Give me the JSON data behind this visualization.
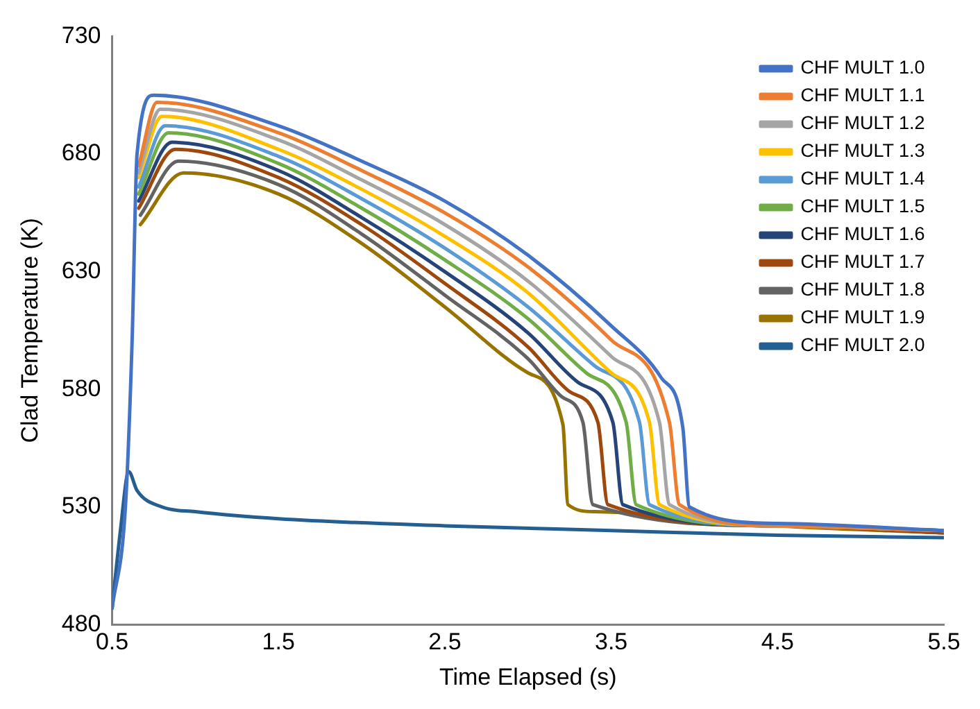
{
  "chart_data": {
    "type": "line",
    "xlabel": "Time Elapsed (s)",
    "ylabel": "Clad Temperature (K)",
    "xlim": [
      0.5,
      5.5
    ],
    "xticks": [
      0.5,
      1.5,
      2.5,
      3.5,
      4.5,
      5.5
    ],
    "ylim": [
      480,
      730
    ],
    "yticks": [
      480,
      530,
      580,
      630,
      680,
      730
    ],
    "grid": false,
    "legend": "top right",
    "marker": "none",
    "line_style": "solid",
    "series": [
      {
        "name": "CHF MULT 1.0",
        "color": "#4472c4",
        "x": [
          0.5,
          0.58,
          0.62,
          0.65,
          0.75,
          1.5,
          2.0,
          2.5,
          3.0,
          3.5,
          3.8,
          3.93,
          3.97,
          4.5,
          5.5
        ],
        "values": [
          487,
          530,
          600,
          680,
          705,
          692,
          677,
          660,
          637,
          607,
          585,
          564,
          530,
          523,
          520
        ]
      },
      {
        "name": "CHF MULT 1.1",
        "color": "#ed7d31",
        "x": [
          0.66,
          0.77,
          1.5,
          2.0,
          2.5,
          3.0,
          3.5,
          3.85,
          3.91,
          4.5,
          5.5
        ],
        "values": [
          675,
          702,
          689,
          673,
          655,
          632,
          601,
          566,
          531,
          522,
          520
        ]
      },
      {
        "name": "CHF MULT 1.2",
        "color": "#a5a5a5",
        "x": [
          0.66,
          0.79,
          1.5,
          2.0,
          2.5,
          3.0,
          3.5,
          3.79,
          3.85,
          4.5,
          5.5
        ],
        "values": [
          672,
          699,
          686,
          669,
          650,
          626,
          594,
          566,
          531,
          522,
          520
        ]
      },
      {
        "name": "CHF MULT 1.3",
        "color": "#ffc000",
        "x": [
          0.66,
          0.8,
          1.5,
          2.0,
          2.5,
          3.0,
          3.5,
          3.73,
          3.79,
          4.5,
          5.5
        ],
        "values": [
          670,
          696,
          682,
          665,
          645,
          621,
          587,
          566,
          531,
          522,
          520
        ]
      },
      {
        "name": "CHF MULT 1.4",
        "color": "#5b9bd5",
        "x": [
          0.66,
          0.82,
          1.5,
          2.0,
          2.5,
          3.0,
          3.4,
          3.67,
          3.73,
          4.5,
          5.5
        ],
        "values": [
          666,
          692,
          679,
          661,
          640,
          615,
          590,
          566,
          531,
          522,
          520
        ]
      },
      {
        "name": "CHF MULT 1.5",
        "color": "#70ad47",
        "x": [
          0.66,
          0.84,
          1.5,
          2.0,
          2.5,
          3.0,
          3.35,
          3.59,
          3.65,
          4.5,
          5.5
        ],
        "values": [
          663,
          689,
          676,
          657,
          635,
          610,
          587,
          566,
          531,
          522,
          520
        ]
      },
      {
        "name": "CHF MULT 1.6",
        "color": "#264478",
        "x": [
          0.66,
          0.86,
          1.5,
          2.0,
          2.5,
          3.0,
          3.3,
          3.51,
          3.57,
          4.5,
          5.5
        ],
        "values": [
          660,
          685,
          673,
          653,
          630,
          604,
          583,
          566,
          531,
          522,
          520
        ]
      },
      {
        "name": "CHF MULT 1.7",
        "color": "#9e480e",
        "x": [
          0.66,
          0.88,
          1.5,
          2.0,
          2.5,
          3.0,
          3.25,
          3.42,
          3.48,
          4.5,
          5.5
        ],
        "values": [
          657,
          682,
          670,
          650,
          625,
          598,
          579,
          566,
          531,
          522,
          519
        ]
      },
      {
        "name": "CHF MULT 1.8",
        "color": "#636363",
        "x": [
          0.67,
          0.9,
          1.5,
          2.0,
          2.5,
          3.0,
          3.2,
          3.33,
          3.39,
          4.5,
          5.5
        ],
        "values": [
          654,
          677,
          667,
          646,
          620,
          593,
          577,
          566,
          531,
          522,
          519
        ]
      },
      {
        "name": "CHF MULT 1.9",
        "color": "#997300",
        "x": [
          0.67,
          0.93,
          1.5,
          2.0,
          2.5,
          3.0,
          3.21,
          3.24,
          3.4,
          4.5,
          5.5
        ],
        "values": [
          650,
          672,
          663,
          642,
          615,
          587,
          565,
          531,
          528,
          522,
          519
        ]
      },
      {
        "name": "CHF MULT 2.0",
        "color": "#255e91",
        "x": [
          0.5,
          0.55,
          0.6,
          0.65,
          0.8,
          1.0,
          1.5,
          2.5,
          3.5,
          4.5,
          5.5
        ],
        "values": [
          487,
          520,
          545,
          537,
          530,
          528,
          525,
          522,
          520,
          518,
          517
        ]
      }
    ]
  }
}
